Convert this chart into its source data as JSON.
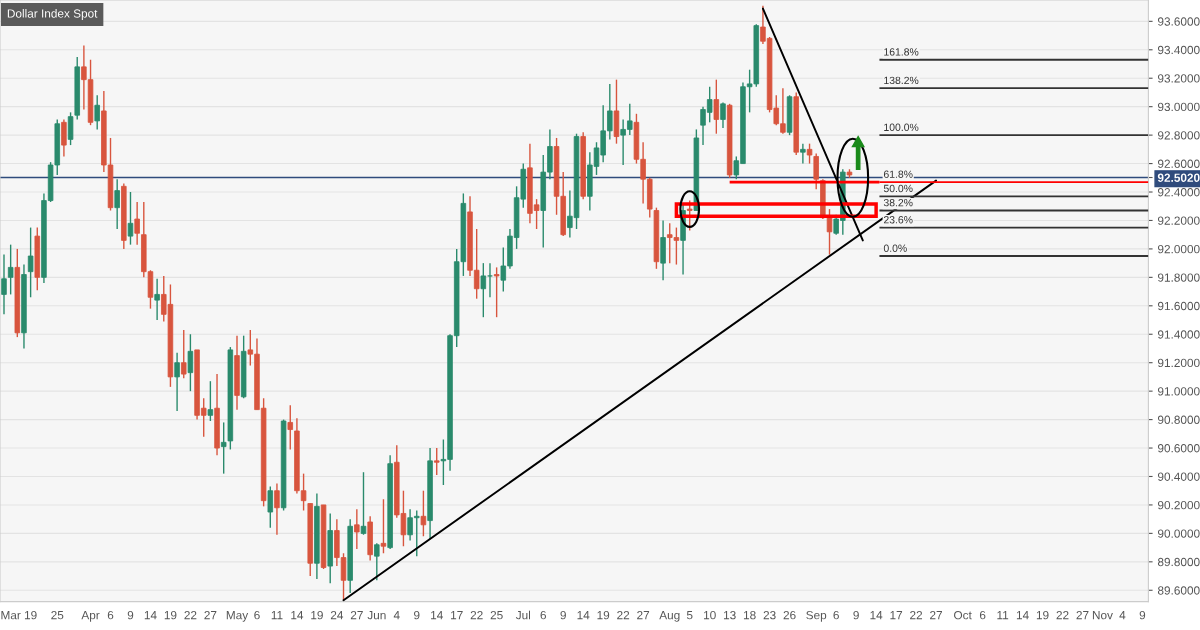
{
  "chart_data": {
    "type": "candlestick",
    "title": "Dollar Index Spot",
    "categories": [
      null,
      "Mar",
      null,
      null,
      "19",
      null,
      null,
      null,
      "25",
      null,
      null,
      null,
      null,
      "Apr",
      null,
      null,
      "6",
      null,
      null,
      "9",
      null,
      null,
      "14",
      null,
      null,
      "19",
      null,
      null,
      "22",
      null,
      null,
      "27",
      null,
      null,
      null,
      "May",
      null,
      null,
      "6",
      null,
      null,
      "11",
      null,
      null,
      "14",
      null,
      null,
      "19",
      null,
      null,
      "24",
      null,
      null,
      "27",
      null,
      null,
      "Jun",
      null,
      null,
      "4",
      null,
      null,
      "9",
      null,
      null,
      "14",
      null,
      null,
      "17",
      null,
      null,
      "22",
      null,
      null,
      "25",
      null,
      null,
      null,
      "Jul",
      null,
      null,
      "6",
      null,
      null,
      "9",
      null,
      null,
      "14",
      null,
      null,
      "19",
      null,
      null,
      "22",
      null,
      null,
      "27",
      null,
      null,
      null,
      "Aug",
      null,
      null,
      "5",
      null,
      null,
      "10",
      null,
      null,
      "13",
      null,
      null,
      "18",
      null,
      null,
      "23",
      null,
      null,
      "26",
      null,
      null,
      null,
      "Sep",
      null,
      null,
      "6",
      null,
      null,
      "9",
      null,
      null,
      "14",
      null,
      null,
      "17",
      null,
      null,
      "22",
      null,
      null,
      "27",
      null,
      null,
      null,
      "Oct",
      null,
      null,
      "6",
      null,
      null,
      "11",
      null,
      null,
      "14",
      null,
      null,
      "19",
      null,
      null,
      "22",
      null,
      null,
      "27",
      null,
      null,
      "Nov",
      null,
      null,
      "4",
      null,
      null,
      "9"
    ],
    "ohlc": [
      [
        91.68,
        91.96,
        91.54,
        91.79
      ],
      [
        91.8,
        92.03,
        91.68,
        91.87
      ],
      [
        91.87,
        92.0,
        91.38,
        91.41
      ],
      [
        91.41,
        91.89,
        91.3,
        91.82
      ],
      [
        91.84,
        92.15,
        91.66,
        91.95
      ],
      [
        92.09,
        92.15,
        91.71,
        91.8
      ],
      [
        91.8,
        92.39,
        91.76,
        92.34
      ],
      [
        92.34,
        92.61,
        92.33,
        92.59
      ],
      [
        92.59,
        92.91,
        92.52,
        92.88
      ],
      [
        92.89,
        92.91,
        92.65,
        92.73
      ],
      [
        92.77,
        92.96,
        92.73,
        92.93
      ],
      [
        92.94,
        93.35,
        92.91,
        93.28
      ],
      [
        93.28,
        93.43,
        92.98,
        93.19
      ],
      [
        93.19,
        93.33,
        92.87,
        92.89
      ],
      [
        92.9,
        93.08,
        92.84,
        93.01
      ],
      [
        92.97,
        93.11,
        92.54,
        92.59
      ],
      [
        92.59,
        92.78,
        92.27,
        92.29
      ],
      [
        92.29,
        92.49,
        92.14,
        92.41
      ],
      [
        92.44,
        92.46,
        92.0,
        92.06
      ],
      [
        92.09,
        92.4,
        92.03,
        92.18
      ],
      [
        92.21,
        92.33,
        92.03,
        92.11
      ],
      [
        92.1,
        92.33,
        91.8,
        91.84
      ],
      [
        91.84,
        91.85,
        91.58,
        91.66
      ],
      [
        91.64,
        91.79,
        91.5,
        91.68
      ],
      [
        91.68,
        91.81,
        91.49,
        91.54
      ],
      [
        91.61,
        91.75,
        91.03,
        91.1
      ],
      [
        91.1,
        91.27,
        90.86,
        91.2
      ],
      [
        91.2,
        91.43,
        91.09,
        91.12
      ],
      [
        91.13,
        91.4,
        91.0,
        91.28
      ],
      [
        91.29,
        91.29,
        90.8,
        90.83
      ],
      [
        90.88,
        90.95,
        90.68,
        90.83
      ],
      [
        90.83,
        91.07,
        90.79,
        90.87
      ],
      [
        90.88,
        91.12,
        90.55,
        90.6
      ],
      [
        90.61,
        90.78,
        90.42,
        90.64
      ],
      [
        90.65,
        91.31,
        90.59,
        91.29
      ],
      [
        91.25,
        91.39,
        90.87,
        90.97
      ],
      [
        90.96,
        91.39,
        90.95,
        91.28
      ],
      [
        91.29,
        91.43,
        91.18,
        91.26
      ],
      [
        91.26,
        91.37,
        90.87,
        90.87
      ],
      [
        90.88,
        90.95,
        90.19,
        90.23
      ],
      [
        90.15,
        90.33,
        90.04,
        90.3
      ],
      [
        90.3,
        90.35,
        89.99,
        90.18
      ],
      [
        90.18,
        90.8,
        90.16,
        90.79
      ],
      [
        90.78,
        90.9,
        90.59,
        90.73
      ],
      [
        90.72,
        90.81,
        90.28,
        90.3
      ],
      [
        90.3,
        90.42,
        90.16,
        90.23
      ],
      [
        90.21,
        90.21,
        89.7,
        89.79
      ],
      [
        89.79,
        90.28,
        89.68,
        90.19
      ],
      [
        90.2,
        90.2,
        89.75,
        89.76
      ],
      [
        89.77,
        90.14,
        89.65,
        90.02
      ],
      [
        90.02,
        90.1,
        89.77,
        89.83
      ],
      [
        89.83,
        89.86,
        89.53,
        89.67
      ],
      [
        89.67,
        90.1,
        89.58,
        90.05
      ],
      [
        90.06,
        90.17,
        89.89,
        90.01
      ],
      [
        90.0,
        90.43,
        89.99,
        90.05
      ],
      [
        90.08,
        90.12,
        89.81,
        89.85
      ],
      [
        89.84,
        89.93,
        89.67,
        89.92
      ],
      [
        89.93,
        90.24,
        89.86,
        89.91
      ],
      [
        89.9,
        90.55,
        89.89,
        90.49
      ],
      [
        90.5,
        90.62,
        90.11,
        90.13
      ],
      [
        90.14,
        90.3,
        89.91,
        89.99
      ],
      [
        89.99,
        90.17,
        89.95,
        90.11
      ],
      [
        90.11,
        90.16,
        89.84,
        90.12
      ],
      [
        90.12,
        90.3,
        89.98,
        90.06
      ],
      [
        90.09,
        90.6,
        89.96,
        90.51
      ],
      [
        90.51,
        90.6,
        90.41,
        90.5
      ],
      [
        90.51,
        90.66,
        90.34,
        90.52
      ],
      [
        90.52,
        91.4,
        90.44,
        91.39
      ],
      [
        91.39,
        92.0,
        91.31,
        91.91
      ],
      [
        91.91,
        92.39,
        91.81,
        92.32
      ],
      [
        92.26,
        92.37,
        91.81,
        91.85
      ],
      [
        91.85,
        92.14,
        91.65,
        91.72
      ],
      [
        91.72,
        91.9,
        91.52,
        91.81
      ],
      [
        91.81,
        91.9,
        91.66,
        91.81
      ],
      [
        91.82,
        91.87,
        91.52,
        91.81
      ],
      [
        91.78,
        92.01,
        91.7,
        91.88
      ],
      [
        91.88,
        92.14,
        91.86,
        92.09
      ],
      [
        92.08,
        92.44,
        92.0,
        92.36
      ],
      [
        92.35,
        92.6,
        92.29,
        92.56
      ],
      [
        92.57,
        92.74,
        92.18,
        92.25
      ],
      [
        92.31,
        92.35,
        92.14,
        92.27
      ],
      [
        92.27,
        92.66,
        92.01,
        92.54
      ],
      [
        92.54,
        92.84,
        92.49,
        92.72
      ],
      [
        92.72,
        92.78,
        92.24,
        92.37
      ],
      [
        92.37,
        92.54,
        92.09,
        92.1
      ],
      [
        92.15,
        92.41,
        92.08,
        92.23
      ],
      [
        92.22,
        92.81,
        92.14,
        92.79
      ],
      [
        92.79,
        92.82,
        92.35,
        92.37
      ],
      [
        92.37,
        92.68,
        92.27,
        92.59
      ],
      [
        92.58,
        92.75,
        92.52,
        92.71
      ],
      [
        92.66,
        93.01,
        92.61,
        92.83
      ],
      [
        92.83,
        93.16,
        92.77,
        92.97
      ],
      [
        92.97,
        93.19,
        92.74,
        92.79
      ],
      [
        92.8,
        92.91,
        92.59,
        92.84
      ],
      [
        92.84,
        93.02,
        92.8,
        92.9
      ],
      [
        92.89,
        92.95,
        92.6,
        92.63
      ],
      [
        92.63,
        92.75,
        92.32,
        92.49
      ],
      [
        92.49,
        92.5,
        92.22,
        92.28
      ],
      [
        92.27,
        92.29,
        91.86,
        91.91
      ],
      [
        91.9,
        92.2,
        91.78,
        92.08
      ],
      [
        92.1,
        92.18,
        91.9,
        92.08
      ],
      [
        92.08,
        92.15,
        91.89,
        92.06
      ],
      [
        92.06,
        92.31,
        91.82,
        92.27
      ],
      [
        92.28,
        92.34,
        92.13,
        92.27
      ],
      [
        92.27,
        92.84,
        92.27,
        92.78
      ],
      [
        92.87,
        93.0,
        92.73,
        92.98
      ],
      [
        92.96,
        93.14,
        92.89,
        93.05
      ],
      [
        93.05,
        93.19,
        92.81,
        92.91
      ],
      [
        92.91,
        93.03,
        92.85,
        93.02
      ],
      [
        93.01,
        93.02,
        92.5,
        92.52
      ],
      [
        92.52,
        92.65,
        92.49,
        92.62
      ],
      [
        92.6,
        93.17,
        92.6,
        93.14
      ],
      [
        93.14,
        93.26,
        92.96,
        93.16
      ],
      [
        93.16,
        93.58,
        93.14,
        93.57
      ],
      [
        93.56,
        93.71,
        93.44,
        93.46
      ],
      [
        93.48,
        93.49,
        92.96,
        92.98
      ],
      [
        92.99,
        93.08,
        92.87,
        92.88
      ],
      [
        92.88,
        93.13,
        92.81,
        92.82
      ],
      [
        92.82,
        93.08,
        92.8,
        93.07
      ],
      [
        93.07,
        93.1,
        92.66,
        92.68
      ],
      [
        92.68,
        92.74,
        92.6,
        92.7
      ],
      [
        92.7,
        92.74,
        92.6,
        92.66
      ],
      [
        92.65,
        92.67,
        92.42,
        92.49
      ],
      [
        92.48,
        92.49,
        92.21,
        92.22
      ],
      [
        92.22,
        92.28,
        91.96,
        92.12
      ],
      [
        92.11,
        92.24,
        92.1,
        92.21
      ],
      [
        92.2,
        92.56,
        92.1,
        92.54
      ],
      [
        92.54,
        92.56,
        92.5,
        92.52
      ],
      null,
      null,
      null,
      null,
      null,
      null,
      null,
      null,
      null,
      null,
      null,
      null,
      null,
      null,
      null,
      null,
      null,
      null,
      null,
      null,
      null,
      null,
      null,
      null,
      null,
      null,
      null,
      null,
      null,
      null,
      null,
      null,
      null,
      null,
      null,
      null,
      null,
      null,
      null,
      null,
      null,
      null,
      null,
      null
    ],
    "series": [
      {
        "type": "line",
        "color": "#000000",
        "values": [
          null,
          null,
          null,
          null,
          null,
          null,
          null,
          null,
          null,
          null,
          null,
          null,
          null,
          null,
          null,
          null,
          null,
          null,
          null,
          null,
          null,
          null,
          null,
          null,
          null,
          null,
          null,
          null,
          null,
          null,
          null,
          null,
          null,
          null,
          null,
          null,
          null,
          null,
          null,
          null,
          null,
          null,
          null,
          null,
          null,
          null,
          null,
          null,
          null,
          null,
          null,
          89.53,
          null,
          null,
          null,
          null,
          null,
          null,
          null,
          null,
          null,
          null,
          null,
          null,
          null,
          null,
          null,
          null,
          null,
          null,
          null,
          null,
          null,
          null,
          null,
          null,
          null,
          null,
          null,
          null,
          null,
          null,
          null,
          null,
          null,
          null,
          null,
          null,
          null,
          null,
          null,
          null,
          null,
          null,
          null,
          null,
          null,
          null,
          null,
          null,
          null,
          null,
          null,
          null,
          null,
          null,
          null,
          null,
          null,
          null,
          null,
          null,
          null,
          null,
          null,
          null,
          null,
          null,
          null,
          null,
          null,
          null,
          null,
          null,
          null,
          null,
          null,
          null,
          null,
          null,
          null,
          null,
          null,
          null,
          null,
          null,
          null,
          null,
          null,
          null,
          92.48,
          null,
          null,
          null,
          null,
          null,
          null,
          null,
          null,
          null,
          null,
          null,
          null,
          null,
          null,
          null,
          null,
          null,
          null,
          null,
          null,
          null,
          null,
          null,
          null,
          null,
          null,
          null,
          null,
          null,
          null,
          null
        ]
      },
      {
        "type": "line",
        "color": "#000000",
        "values": [
          null,
          null,
          null,
          null,
          null,
          null,
          null,
          null,
          null,
          null,
          null,
          null,
          null,
          null,
          null,
          null,
          null,
          null,
          null,
          null,
          null,
          null,
          null,
          null,
          null,
          null,
          null,
          null,
          null,
          null,
          null,
          null,
          null,
          null,
          null,
          null,
          null,
          null,
          null,
          null,
          null,
          null,
          null,
          null,
          null,
          null,
          null,
          null,
          null,
          null,
          null,
          null,
          null,
          null,
          null,
          null,
          null,
          null,
          null,
          null,
          null,
          null,
          null,
          null,
          null,
          null,
          null,
          null,
          null,
          null,
          null,
          null,
          null,
          null,
          null,
          null,
          null,
          null,
          null,
          null,
          null,
          null,
          null,
          null,
          null,
          null,
          null,
          null,
          null,
          null,
          null,
          null,
          null,
          null,
          null,
          null,
          null,
          null,
          null,
          null,
          null,
          null,
          null,
          null,
          null,
          null,
          null,
          null,
          null,
          null,
          null,
          null,
          null,
          null,
          93.69,
          null,
          null,
          null,
          null,
          null,
          null,
          null,
          null,
          null,
          null,
          null,
          null,
          null,
          null,
          92.06,
          null,
          null,
          null,
          null,
          null,
          null,
          null,
          null,
          null,
          null,
          null,
          null,
          null,
          null,
          null,
          null,
          null,
          null,
          null,
          null,
          null,
          null,
          null,
          null,
          null,
          null,
          null,
          null,
          null,
          null,
          null,
          null,
          null,
          null,
          null,
          null,
          null,
          null,
          null,
          null,
          null,
          null
        ]
      }
    ],
    "ylim": [
      89.52,
      93.75
    ],
    "yticks": [
      {
        "value": 89.6,
        "label": "89.6000"
      },
      {
        "value": 89.8,
        "label": "89.8000"
      },
      {
        "value": 90.0,
        "label": "90.0000"
      },
      {
        "value": 90.2,
        "label": "90.2000"
      },
      {
        "value": 90.4,
        "label": "90.4000"
      },
      {
        "value": 90.6,
        "label": "90.6000"
      },
      {
        "value": 90.8,
        "label": "90.8000"
      },
      {
        "value": 91.0,
        "label": "91.0000"
      },
      {
        "value": 91.2,
        "label": "91.2000"
      },
      {
        "value": 91.4,
        "label": "91.4000"
      },
      {
        "value": 91.6,
        "label": "91.6000"
      },
      {
        "value": 91.8,
        "label": "91.8000"
      },
      {
        "value": 92.0,
        "label": "92.0000"
      },
      {
        "value": 92.2,
        "label": "92.2000"
      },
      {
        "value": 92.4,
        "label": "92.4000"
      },
      {
        "value": 92.502,
        "label": "92.5020"
      },
      {
        "value": 92.6,
        "label": "92.6000"
      },
      {
        "value": 92.8,
        "label": "92.8000"
      },
      {
        "value": 93.0,
        "label": "93.0000"
      },
      {
        "value": 93.2,
        "label": "93.2000"
      },
      {
        "value": 93.4,
        "label": "93.4000"
      },
      {
        "value": 93.6,
        "label": "93.6000"
      }
    ],
    "grid": "y",
    "ref_lines": [
      {
        "axis": "y",
        "value": 92.502,
        "color": "#2f4b7c"
      },
      {
        "axis": "y",
        "value": 93.33,
        "color": "#333333"
      },
      {
        "axis": "y",
        "value": 93.13,
        "color": "#333333"
      },
      {
        "axis": "y",
        "value": 92.8,
        "color": "#333333"
      },
      {
        "axis": "y",
        "value": 92.47,
        "color": "#ff0000"
      },
      {
        "axis": "y",
        "value": 92.37,
        "color": "#333333"
      },
      {
        "axis": "y",
        "value": 92.27,
        "color": "#333333"
      },
      {
        "axis": "y",
        "value": 92.15,
        "color": "#333333"
      },
      {
        "axis": "y",
        "value": 91.95,
        "color": "#333333"
      }
    ],
    "annotations": [
      {
        "text": "161.8%",
        "y": 93.33
      },
      {
        "text": "138.2%",
        "y": 93.13
      },
      {
        "text": "100.0%",
        "y": 92.8
      },
      {
        "text": "61.8%",
        "y": 92.47
      },
      {
        "text": "50.0%",
        "y": 92.37
      },
      {
        "text": "38.2%",
        "y": 92.27
      },
      {
        "text": "23.6%",
        "y": 92.15
      },
      {
        "text": "0.0%",
        "y": 91.95
      }
    ]
  }
}
